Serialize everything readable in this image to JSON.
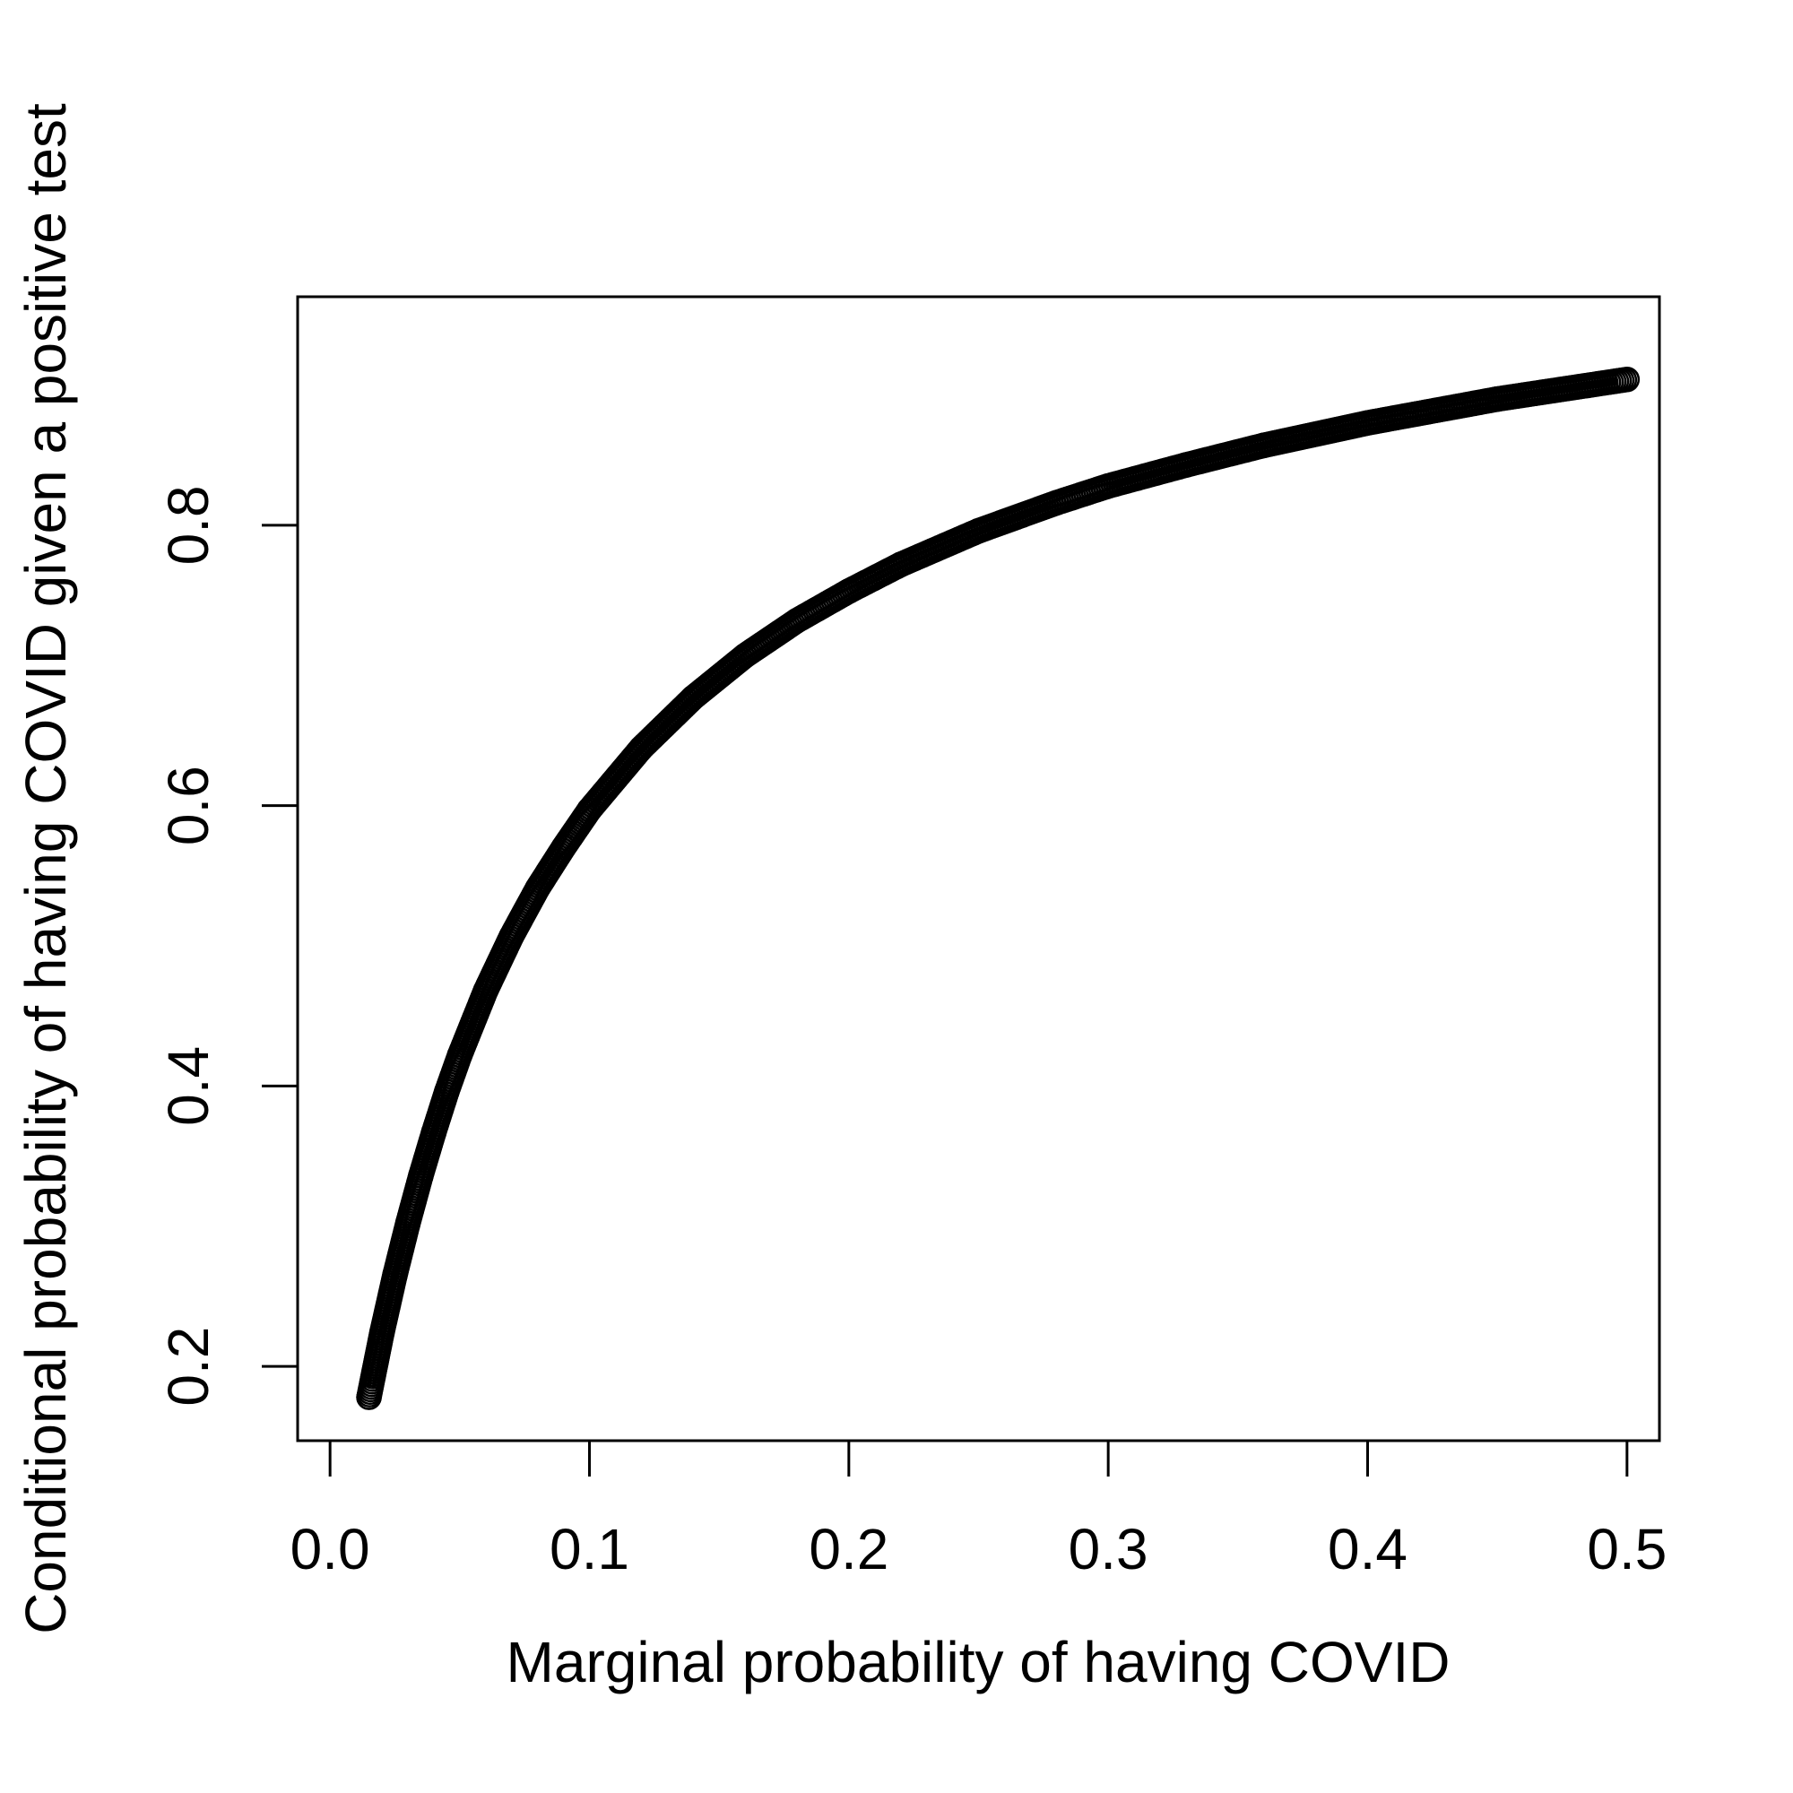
{
  "chart_data": {
    "type": "scatter",
    "title": "",
    "xlabel": "Marginal probability of having COVID",
    "ylabel": "Conditional probability of having COVID given a positive test",
    "xlim": [
      -0.0125,
      0.5125
    ],
    "ylim": [
      0.147,
      0.963
    ],
    "x_ticks": [
      {
        "value": 0.0,
        "label": "0.0"
      },
      {
        "value": 0.1,
        "label": "0.1"
      },
      {
        "value": 0.2,
        "label": "0.2"
      },
      {
        "value": 0.3,
        "label": "0.3"
      },
      {
        "value": 0.4,
        "label": "0.4"
      },
      {
        "value": 0.5,
        "label": "0.5"
      }
    ],
    "y_ticks": [
      {
        "value": 0.2,
        "label": "0.2"
      },
      {
        "value": 0.4,
        "label": "0.4"
      },
      {
        "value": 0.6,
        "label": "0.6"
      },
      {
        "value": 0.8,
        "label": "0.8"
      }
    ],
    "grid": false,
    "marker": "open-circle",
    "series": [
      {
        "color": "#000000",
        "points": [
          {
            "x": 0.015,
            "y": 0.178
          },
          {
            "x": 0.02,
            "y": 0.224
          },
          {
            "x": 0.025,
            "y": 0.265
          },
          {
            "x": 0.03,
            "y": 0.302
          },
          {
            "x": 0.035,
            "y": 0.336
          },
          {
            "x": 0.04,
            "y": 0.367
          },
          {
            "x": 0.045,
            "y": 0.396
          },
          {
            "x": 0.05,
            "y": 0.422
          },
          {
            "x": 0.06,
            "y": 0.468
          },
          {
            "x": 0.07,
            "y": 0.507
          },
          {
            "x": 0.08,
            "y": 0.541
          },
          {
            "x": 0.09,
            "y": 0.57
          },
          {
            "x": 0.1,
            "y": 0.597
          },
          {
            "x": 0.12,
            "y": 0.641
          },
          {
            "x": 0.14,
            "y": 0.677
          },
          {
            "x": 0.16,
            "y": 0.707
          },
          {
            "x": 0.18,
            "y": 0.732
          },
          {
            "x": 0.2,
            "y": 0.753
          },
          {
            "x": 0.22,
            "y": 0.772
          },
          {
            "x": 0.25,
            "y": 0.796
          },
          {
            "x": 0.28,
            "y": 0.816
          },
          {
            "x": 0.3,
            "y": 0.828
          },
          {
            "x": 0.33,
            "y": 0.843
          },
          {
            "x": 0.36,
            "y": 0.857
          },
          {
            "x": 0.4,
            "y": 0.873
          },
          {
            "x": 0.45,
            "y": 0.89
          },
          {
            "x": 0.5,
            "y": 0.904
          }
        ]
      }
    ]
  }
}
